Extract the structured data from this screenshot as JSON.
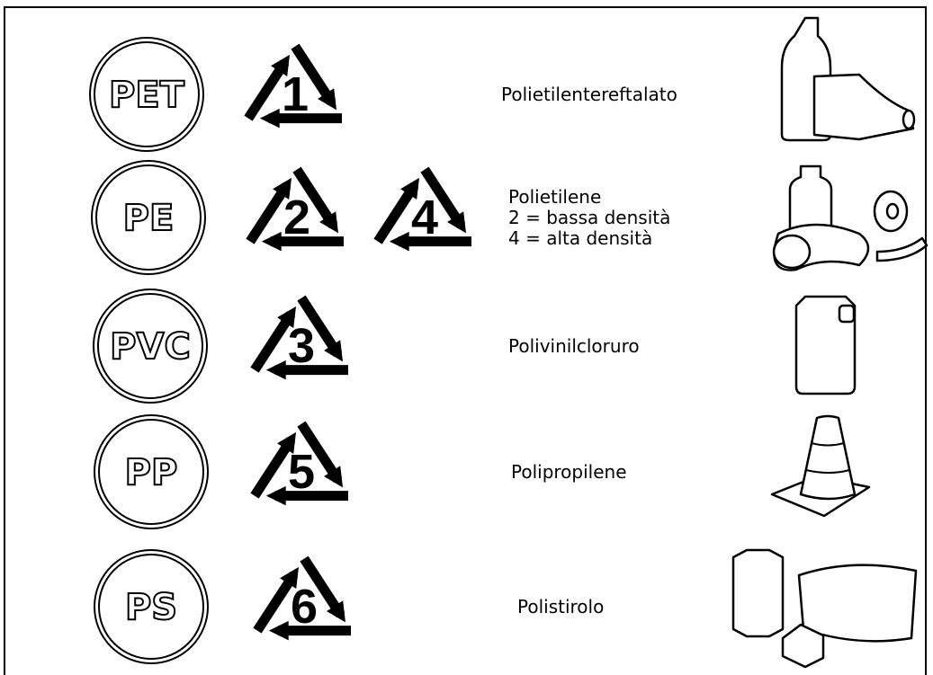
{
  "rows": [
    {
      "code": "PET",
      "numbers": [
        1
      ],
      "description": [
        "Polietilentereftalato"
      ]
    },
    {
      "code": "PE",
      "numbers": [
        2,
        4
      ],
      "description": [
        "Polietilene",
        "2 = bassa densità",
        "4 = alta densità"
      ]
    },
    {
      "code": "PVC",
      "numbers": [
        3
      ],
      "description": [
        "Polivinilcloruro"
      ]
    },
    {
      "code": "PP",
      "numbers": [
        5
      ],
      "description": [
        "Polipropilene"
      ]
    },
    {
      "code": "PS",
      "numbers": [
        6
      ],
      "description": [
        "Polistirolo"
      ]
    }
  ]
}
